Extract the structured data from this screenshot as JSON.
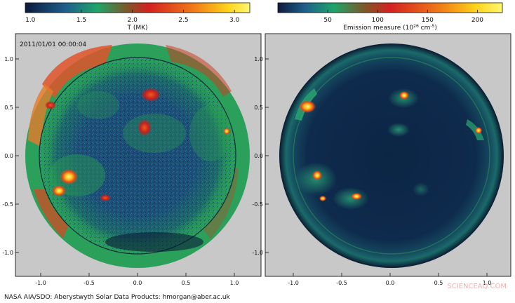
{
  "colorbars": [
    {
      "label": "T (MK)",
      "ticks": [
        "1.0",
        "1.5",
        "2.0",
        "2.5",
        "3.0"
      ],
      "tick_values": [
        1.0,
        1.5,
        2.0,
        2.5,
        3.0
      ],
      "range": [
        0.95,
        3.15
      ]
    },
    {
      "label_main": "Emission measure (10",
      "label_sup": "26",
      "label_unit": " cm",
      "label_sup2": "-5",
      "label_end": ")",
      "ticks": [
        "50",
        "100",
        "150",
        "200"
      ],
      "tick_values": [
        50,
        100,
        150,
        200
      ],
      "range": [
        0,
        225
      ]
    }
  ],
  "panels": [
    {
      "timestamp": "2011/01/01 00:00:04",
      "x_ticks": [
        "-1.0",
        "-0.5",
        "0.0",
        "0.5",
        "1.0"
      ],
      "x_tick_values": [
        -1.0,
        -0.5,
        0.0,
        0.5,
        1.0
      ],
      "y_ticks": [
        "1.0",
        "0.5",
        "0.0",
        "-0.5",
        "-1.0"
      ],
      "y_tick_values": [
        1.0,
        0.5,
        0.0,
        -0.5,
        -1.0
      ]
    },
    {
      "x_ticks": [
        "-1.0",
        "-0.5",
        "0.0",
        "0.5",
        "1.0"
      ],
      "x_tick_values": [
        -1.0,
        -0.5,
        0.0,
        0.5,
        1.0
      ],
      "y_ticks": [
        "1.0",
        "0.5",
        "0.0",
        "-0.5",
        "-1.0"
      ],
      "y_tick_values": [
        1.0,
        0.5,
        0.0,
        -0.5,
        -1.0
      ]
    }
  ],
  "credit": "NASA AIA/SDO: Aberystwyth Solar Data Products: hmorgan@aber.ac.uk",
  "watermark": "SCIENCEAQ.COM",
  "colors": {
    "panel_background": "#c8c8c8",
    "disk_dark": "#0c2545",
    "watermark": "#e8b4b4"
  }
}
